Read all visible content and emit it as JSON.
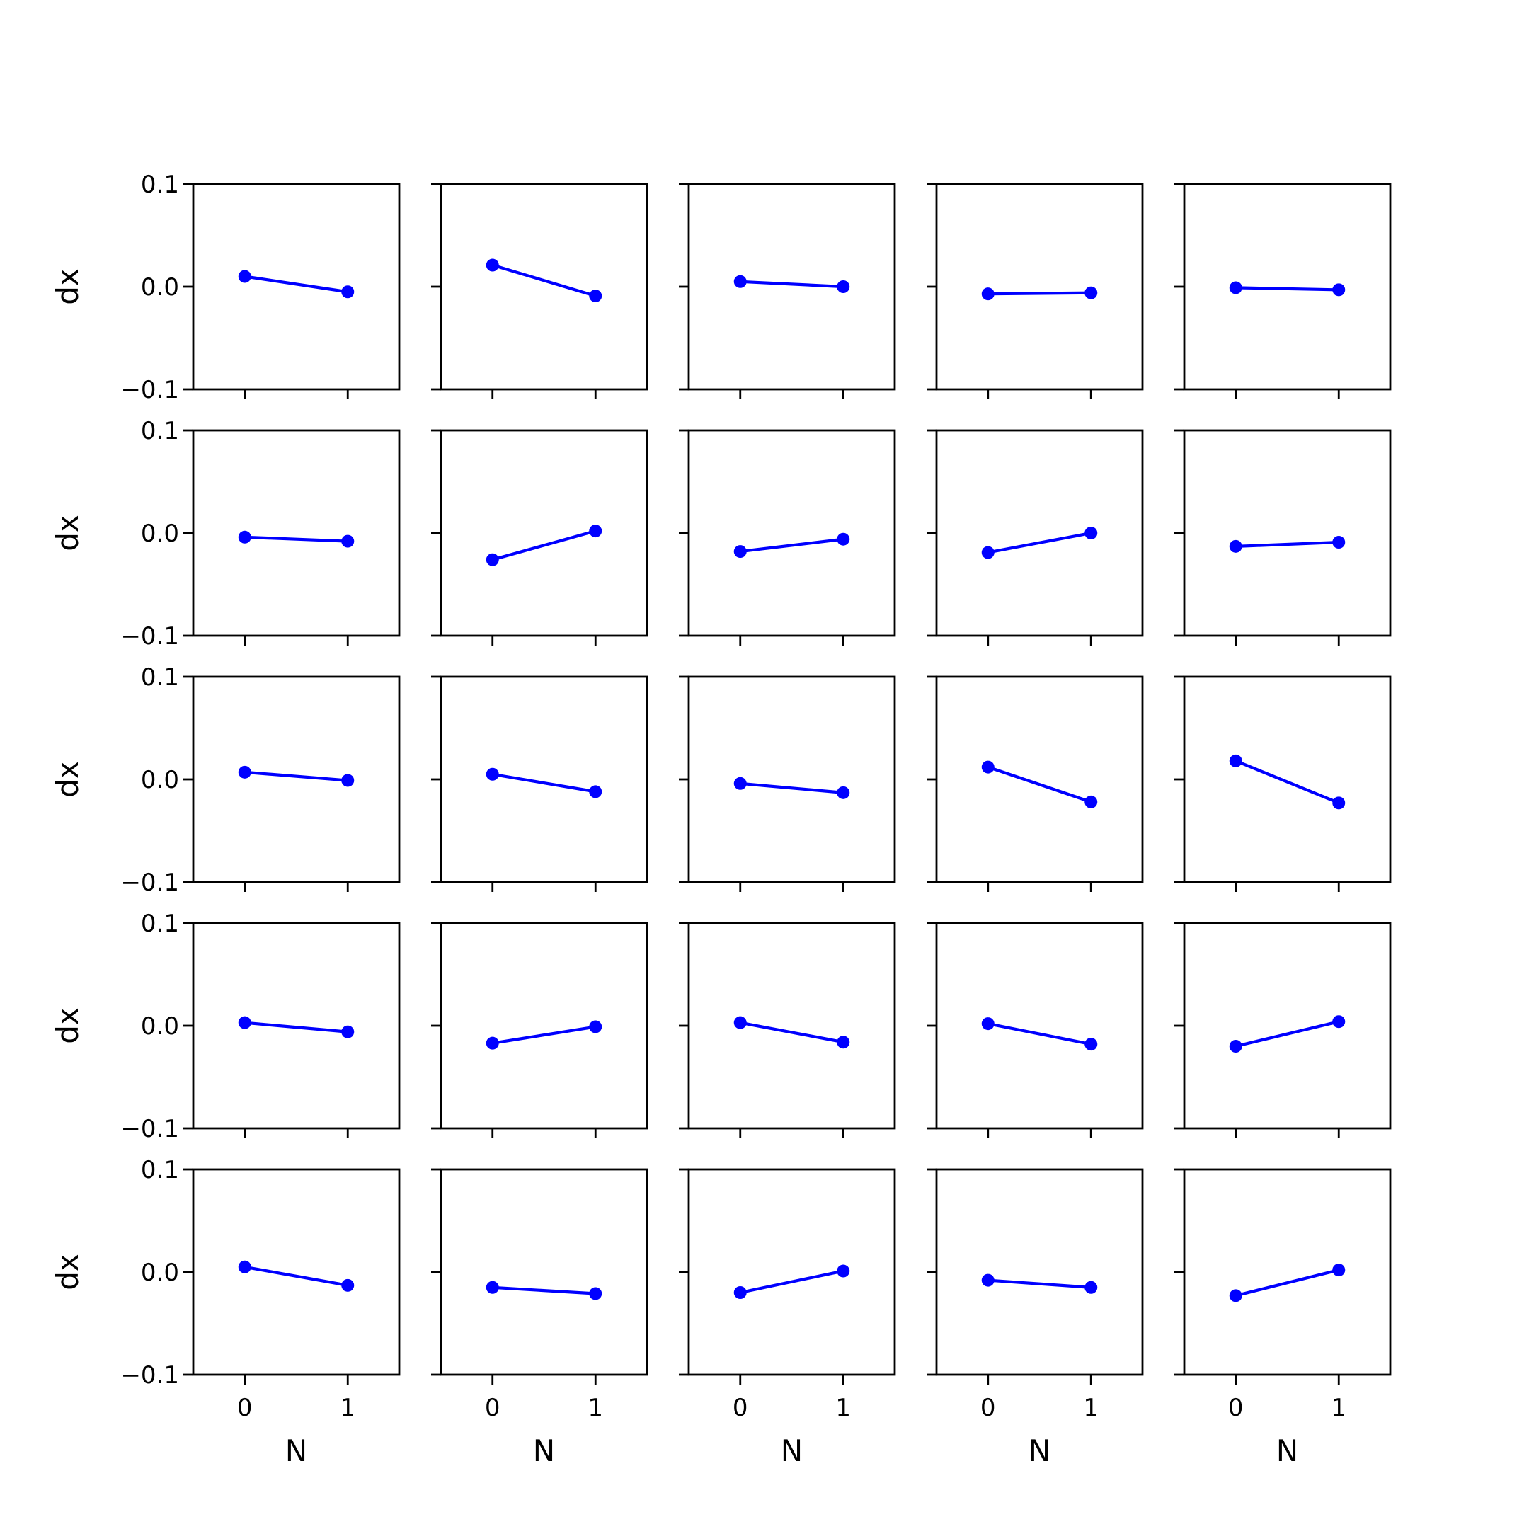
{
  "chart_data": {
    "type": "line",
    "layout": {
      "rows": 5,
      "cols": 5
    },
    "shared_axes": {
      "xlabel": "N",
      "ylabel": "dx",
      "xlim": [
        -0.5,
        1.5
      ],
      "ylim": [
        -0.1,
        0.1
      ],
      "xticks": [
        0,
        1
      ],
      "xtick_labels": [
        "0",
        "1"
      ],
      "yticks": [
        0.1,
        0.0,
        -0.1
      ],
      "ytick_labels": [
        "0.1",
        "0.0",
        "−0.1"
      ]
    },
    "series_color": "#0000ff",
    "x": [
      0,
      1
    ],
    "panels": [
      {
        "row": 1,
        "col": 1,
        "values": [
          0.01,
          -0.005
        ]
      },
      {
        "row": 1,
        "col": 2,
        "values": [
          0.021,
          -0.009
        ]
      },
      {
        "row": 1,
        "col": 3,
        "values": [
          0.005,
          0.0
        ]
      },
      {
        "row": 1,
        "col": 4,
        "values": [
          -0.007,
          -0.006
        ]
      },
      {
        "row": 1,
        "col": 5,
        "values": [
          -0.001,
          -0.003
        ]
      },
      {
        "row": 2,
        "col": 1,
        "values": [
          -0.004,
          -0.008
        ]
      },
      {
        "row": 2,
        "col": 2,
        "values": [
          -0.026,
          0.002
        ]
      },
      {
        "row": 2,
        "col": 3,
        "values": [
          -0.018,
          -0.006
        ]
      },
      {
        "row": 2,
        "col": 4,
        "values": [
          -0.019,
          0.0
        ]
      },
      {
        "row": 2,
        "col": 5,
        "values": [
          -0.013,
          -0.009
        ]
      },
      {
        "row": 3,
        "col": 1,
        "values": [
          0.007,
          -0.001
        ]
      },
      {
        "row": 3,
        "col": 2,
        "values": [
          0.005,
          -0.012
        ]
      },
      {
        "row": 3,
        "col": 3,
        "values": [
          -0.004,
          -0.013
        ]
      },
      {
        "row": 3,
        "col": 4,
        "values": [
          0.012,
          -0.022
        ]
      },
      {
        "row": 3,
        "col": 5,
        "values": [
          0.018,
          -0.023
        ]
      },
      {
        "row": 4,
        "col": 1,
        "values": [
          0.003,
          -0.006
        ]
      },
      {
        "row": 4,
        "col": 2,
        "values": [
          -0.017,
          -0.001
        ]
      },
      {
        "row": 4,
        "col": 3,
        "values": [
          0.003,
          -0.016
        ]
      },
      {
        "row": 4,
        "col": 4,
        "values": [
          0.002,
          -0.018
        ]
      },
      {
        "row": 4,
        "col": 5,
        "values": [
          -0.02,
          0.004
        ]
      },
      {
        "row": 5,
        "col": 1,
        "values": [
          0.005,
          -0.013
        ]
      },
      {
        "row": 5,
        "col": 2,
        "values": [
          -0.015,
          -0.021
        ]
      },
      {
        "row": 5,
        "col": 3,
        "values": [
          -0.02,
          0.001
        ]
      },
      {
        "row": 5,
        "col": 4,
        "values": [
          -0.008,
          -0.015
        ]
      },
      {
        "row": 5,
        "col": 5,
        "values": [
          -0.023,
          0.002
        ]
      }
    ]
  }
}
